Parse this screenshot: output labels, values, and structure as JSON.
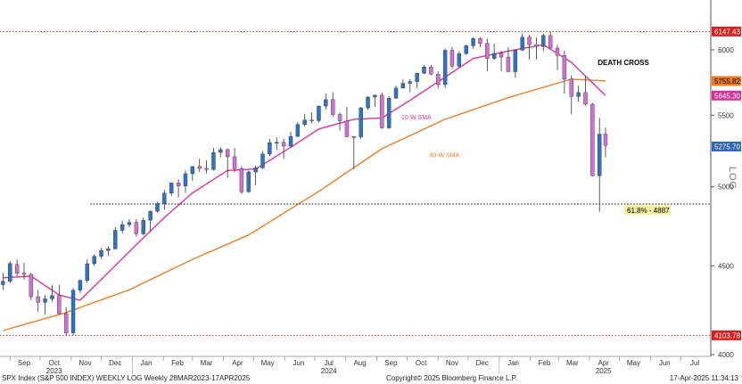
{
  "chart_data": {
    "type": "candlestick",
    "scale": "log",
    "ylim": [
      4000,
      6350
    ],
    "yticks": [
      4000,
      4500,
      5000,
      5500,
      6000
    ],
    "y_axis_label": "LOG",
    "candles": [
      {
        "date": "2023-08-25",
        "o": 4390,
        "h": 4460,
        "l": 4360,
        "c": 4410
      },
      {
        "date": "2023-09-01",
        "o": 4410,
        "h": 4530,
        "l": 4400,
        "c": 4515
      },
      {
        "date": "2023-09-08",
        "o": 4510,
        "h": 4540,
        "l": 4440,
        "c": 4457
      },
      {
        "date": "2023-09-15",
        "o": 4457,
        "h": 4520,
        "l": 4420,
        "c": 4450
      },
      {
        "date": "2023-09-22",
        "o": 4450,
        "h": 4460,
        "l": 4300,
        "c": 4320
      },
      {
        "date": "2023-09-29",
        "o": 4320,
        "h": 4360,
        "l": 4235,
        "c": 4288
      },
      {
        "date": "2023-10-06",
        "o": 4288,
        "h": 4330,
        "l": 4220,
        "c": 4308
      },
      {
        "date": "2023-10-13",
        "o": 4308,
        "h": 4390,
        "l": 4290,
        "c": 4327
      },
      {
        "date": "2023-10-20",
        "o": 4327,
        "h": 4390,
        "l": 4220,
        "c": 4224
      },
      {
        "date": "2023-10-27",
        "o": 4224,
        "h": 4260,
        "l": 4104,
        "c": 4117
      },
      {
        "date": "2023-11-03",
        "o": 4117,
        "h": 4370,
        "l": 4105,
        "c": 4358
      },
      {
        "date": "2023-11-10",
        "o": 4358,
        "h": 4420,
        "l": 4340,
        "c": 4415
      },
      {
        "date": "2023-11-17",
        "o": 4415,
        "h": 4540,
        "l": 4400,
        "c": 4514
      },
      {
        "date": "2023-11-24",
        "o": 4514,
        "h": 4570,
        "l": 4500,
        "c": 4559
      },
      {
        "date": "2023-12-01",
        "o": 4559,
        "h": 4610,
        "l": 4540,
        "c": 4594
      },
      {
        "date": "2023-12-08",
        "o": 4594,
        "h": 4620,
        "l": 4560,
        "c": 4604
      },
      {
        "date": "2023-12-15",
        "o": 4604,
        "h": 4740,
        "l": 4600,
        "c": 4719
      },
      {
        "date": "2023-12-22",
        "o": 4719,
        "h": 4780,
        "l": 4700,
        "c": 4755
      },
      {
        "date": "2023-12-29",
        "o": 4755,
        "h": 4790,
        "l": 4740,
        "c": 4769
      },
      {
        "date": "2024-01-05",
        "o": 4769,
        "h": 4790,
        "l": 4680,
        "c": 4697
      },
      {
        "date": "2024-01-12",
        "o": 4697,
        "h": 4800,
        "l": 4690,
        "c": 4783
      },
      {
        "date": "2024-01-19",
        "o": 4783,
        "h": 4845,
        "l": 4710,
        "c": 4840
      },
      {
        "date": "2024-01-26",
        "o": 4840,
        "h": 4900,
        "l": 4830,
        "c": 4891
      },
      {
        "date": "2024-02-02",
        "o": 4891,
        "h": 4980,
        "l": 4850,
        "c": 4958
      },
      {
        "date": "2024-02-09",
        "o": 4958,
        "h": 5030,
        "l": 4940,
        "c": 5026
      },
      {
        "date": "2024-02-16",
        "o": 5026,
        "h": 5050,
        "l": 4930,
        "c": 5005
      },
      {
        "date": "2024-02-23",
        "o": 5005,
        "h": 5110,
        "l": 4960,
        "c": 5088
      },
      {
        "date": "2024-03-01",
        "o": 5088,
        "h": 5140,
        "l": 5040,
        "c": 5137
      },
      {
        "date": "2024-03-08",
        "o": 5137,
        "h": 5190,
        "l": 5100,
        "c": 5124
      },
      {
        "date": "2024-03-15",
        "o": 5124,
        "h": 5180,
        "l": 5090,
        "c": 5117
      },
      {
        "date": "2024-03-22",
        "o": 5117,
        "h": 5265,
        "l": 5110,
        "c": 5234
      },
      {
        "date": "2024-03-29",
        "o": 5234,
        "h": 5270,
        "l": 5200,
        "c": 5254
      },
      {
        "date": "2024-04-05",
        "o": 5254,
        "h": 5260,
        "l": 5060,
        "c": 5204
      },
      {
        "date": "2024-04-12",
        "o": 5204,
        "h": 5265,
        "l": 5100,
        "c": 5123
      },
      {
        "date": "2024-04-19",
        "o": 5123,
        "h": 5140,
        "l": 4953,
        "c": 4967
      },
      {
        "date": "2024-04-26",
        "o": 4967,
        "h": 5110,
        "l": 4960,
        "c": 5100
      },
      {
        "date": "2024-05-03",
        "o": 5100,
        "h": 5140,
        "l": 5010,
        "c": 5128
      },
      {
        "date": "2024-05-10",
        "o": 5128,
        "h": 5240,
        "l": 5120,
        "c": 5223
      },
      {
        "date": "2024-05-17",
        "o": 5223,
        "h": 5330,
        "l": 5210,
        "c": 5303
      },
      {
        "date": "2024-05-24",
        "o": 5303,
        "h": 5340,
        "l": 5250,
        "c": 5305
      },
      {
        "date": "2024-05-31",
        "o": 5305,
        "h": 5330,
        "l": 5190,
        "c": 5278
      },
      {
        "date": "2024-06-07",
        "o": 5278,
        "h": 5380,
        "l": 5270,
        "c": 5347
      },
      {
        "date": "2024-06-14",
        "o": 5347,
        "h": 5450,
        "l": 5340,
        "c": 5432
      },
      {
        "date": "2024-06-21",
        "o": 5432,
        "h": 5510,
        "l": 5420,
        "c": 5464
      },
      {
        "date": "2024-06-28",
        "o": 5464,
        "h": 5520,
        "l": 5440,
        "c": 5460
      },
      {
        "date": "2024-07-05",
        "o": 5460,
        "h": 5570,
        "l": 5450,
        "c": 5567
      },
      {
        "date": "2024-07-12",
        "o": 5567,
        "h": 5660,
        "l": 5540,
        "c": 5615
      },
      {
        "date": "2024-07-19",
        "o": 5615,
        "h": 5670,
        "l": 5490,
        "c": 5505
      },
      {
        "date": "2024-07-26",
        "o": 5505,
        "h": 5520,
        "l": 5390,
        "c": 5459
      },
      {
        "date": "2024-08-02",
        "o": 5459,
        "h": 5560,
        "l": 5340,
        "c": 5346
      },
      {
        "date": "2024-08-09",
        "o": 5346,
        "h": 5350,
        "l": 5119,
        "c": 5344
      },
      {
        "date": "2024-08-16",
        "o": 5344,
        "h": 5560,
        "l": 5330,
        "c": 5554
      },
      {
        "date": "2024-08-23",
        "o": 5554,
        "h": 5640,
        "l": 5540,
        "c": 5634
      },
      {
        "date": "2024-08-30",
        "o": 5634,
        "h": 5650,
        "l": 5560,
        "c": 5648
      },
      {
        "date": "2024-09-06",
        "o": 5648,
        "h": 5670,
        "l": 5400,
        "c": 5408
      },
      {
        "date": "2024-09-13",
        "o": 5408,
        "h": 5640,
        "l": 5400,
        "c": 5626
      },
      {
        "date": "2024-09-20",
        "o": 5626,
        "h": 5720,
        "l": 5620,
        "c": 5702
      },
      {
        "date": "2024-09-27",
        "o": 5702,
        "h": 5770,
        "l": 5700,
        "c": 5738
      },
      {
        "date": "2024-10-04",
        "o": 5738,
        "h": 5770,
        "l": 5670,
        "c": 5751
      },
      {
        "date": "2024-10-11",
        "o": 5751,
        "h": 5820,
        "l": 5700,
        "c": 5815
      },
      {
        "date": "2024-10-18",
        "o": 5815,
        "h": 5880,
        "l": 5810,
        "c": 5864
      },
      {
        "date": "2024-10-25",
        "o": 5864,
        "h": 5880,
        "l": 5800,
        "c": 5808
      },
      {
        "date": "2024-11-01",
        "o": 5808,
        "h": 5830,
        "l": 5700,
        "c": 5729
      },
      {
        "date": "2024-11-08",
        "o": 5729,
        "h": 6010,
        "l": 5700,
        "c": 5995
      },
      {
        "date": "2024-11-15",
        "o": 5995,
        "h": 6020,
        "l": 5850,
        "c": 5871
      },
      {
        "date": "2024-11-22",
        "o": 5871,
        "h": 5990,
        "l": 5860,
        "c": 5969
      },
      {
        "date": "2024-11-29",
        "o": 5969,
        "h": 6040,
        "l": 5960,
        "c": 6032
      },
      {
        "date": "2024-12-06",
        "o": 6032,
        "h": 6100,
        "l": 6010,
        "c": 6090
      },
      {
        "date": "2024-12-13",
        "o": 6090,
        "h": 6100,
        "l": 6020,
        "c": 6051
      },
      {
        "date": "2024-12-20",
        "o": 6051,
        "h": 6090,
        "l": 5830,
        "c": 5931
      },
      {
        "date": "2024-12-27",
        "o": 5931,
        "h": 6050,
        "l": 5920,
        "c": 5971
      },
      {
        "date": "2025-01-03",
        "o": 5971,
        "h": 5990,
        "l": 5830,
        "c": 5942
      },
      {
        "date": "2025-01-10",
        "o": 5942,
        "h": 6020,
        "l": 5830,
        "c": 5827
      },
      {
        "date": "2025-01-17",
        "o": 5827,
        "h": 6000,
        "l": 5780,
        "c": 5997
      },
      {
        "date": "2025-01-24",
        "o": 5997,
        "h": 6130,
        "l": 5990,
        "c": 6101
      },
      {
        "date": "2025-01-31",
        "o": 6101,
        "h": 6120,
        "l": 5920,
        "c": 6041
      },
      {
        "date": "2025-02-07",
        "o": 6041,
        "h": 6100,
        "l": 5920,
        "c": 6026
      },
      {
        "date": "2025-02-14",
        "o": 6026,
        "h": 6130,
        "l": 5990,
        "c": 6115
      },
      {
        "date": "2025-02-21",
        "o": 6115,
        "h": 6147,
        "l": 6010,
        "c": 6013
      },
      {
        "date": "2025-02-28",
        "o": 6013,
        "h": 6040,
        "l": 5840,
        "c": 5955
      },
      {
        "date": "2025-03-07",
        "o": 5955,
        "h": 5990,
        "l": 5660,
        "c": 5770
      },
      {
        "date": "2025-03-14",
        "o": 5770,
        "h": 5800,
        "l": 5505,
        "c": 5639
      },
      {
        "date": "2025-03-21",
        "o": 5639,
        "h": 5720,
        "l": 5600,
        "c": 5668
      },
      {
        "date": "2025-03-28",
        "o": 5668,
        "h": 5790,
        "l": 5570,
        "c": 5581
      },
      {
        "date": "2025-04-04",
        "o": 5581,
        "h": 5590,
        "l": 5070,
        "c": 5074
      },
      {
        "date": "2025-04-11",
        "o": 5074,
        "h": 5480,
        "l": 4836,
        "c": 5363
      },
      {
        "date": "2025-04-17",
        "o": 5363,
        "h": 5410,
        "l": 5200,
        "c": 5283
      }
    ],
    "sma10": [
      {
        "date": "2023-08-25",
        "v": 4430
      },
      {
        "date": "2023-09-22",
        "v": 4440
      },
      {
        "date": "2023-10-20",
        "v": 4330
      },
      {
        "date": "2023-11-10",
        "v": 4300
      },
      {
        "date": "2023-12-01",
        "v": 4420
      },
      {
        "date": "2024-01-05",
        "v": 4630
      },
      {
        "date": "2024-02-02",
        "v": 4800
      },
      {
        "date": "2024-03-01",
        "v": 4960
      },
      {
        "date": "2024-04-05",
        "v": 5110
      },
      {
        "date": "2024-05-03",
        "v": 5120
      },
      {
        "date": "2024-06-07",
        "v": 5270
      },
      {
        "date": "2024-07-05",
        "v": 5400
      },
      {
        "date": "2024-08-09",
        "v": 5470
      },
      {
        "date": "2024-09-06",
        "v": 5480
      },
      {
        "date": "2024-10-04",
        "v": 5610
      },
      {
        "date": "2024-11-01",
        "v": 5750
      },
      {
        "date": "2024-12-06",
        "v": 5930
      },
      {
        "date": "2025-01-10",
        "v": 5990
      },
      {
        "date": "2025-02-14",
        "v": 6040
      },
      {
        "date": "2025-03-14",
        "v": 5900
      },
      {
        "date": "2025-04-17",
        "v": 5645.3
      }
    ],
    "sma40": [
      {
        "date": "2023-08-25",
        "v": 4130
      },
      {
        "date": "2023-10-27",
        "v": 4230
      },
      {
        "date": "2023-12-29",
        "v": 4360
      },
      {
        "date": "2024-03-01",
        "v": 4540
      },
      {
        "date": "2024-04-26",
        "v": 4690
      },
      {
        "date": "2024-07-05",
        "v": 4970
      },
      {
        "date": "2024-09-06",
        "v": 5260
      },
      {
        "date": "2024-11-08",
        "v": 5470
      },
      {
        "date": "2025-01-10",
        "v": 5630
      },
      {
        "date": "2025-03-14",
        "v": 5770
      },
      {
        "date": "2025-04-17",
        "v": 5755.82
      }
    ],
    "hlines": [
      {
        "value": 6147.43,
        "label": "6147.43",
        "style": "dotted",
        "color": "#d42020"
      },
      {
        "value": 4103.78,
        "label": "4103.78",
        "style": "dotted",
        "color": "#d42020"
      },
      {
        "value": 4887,
        "label": "61.8% - 4887",
        "style": "dotted",
        "color": "#000000"
      }
    ],
    "price_tags": [
      {
        "value": 6147.43,
        "label": "6147.43",
        "bg": "#d42020",
        "fg": "#ffffff"
      },
      {
        "value": 5755.82,
        "label": "5755.82",
        "bg": "#f07c20",
        "fg": "#000000"
      },
      {
        "value": 5645.3,
        "label": "5645.30",
        "bg": "#d4329a",
        "fg": "#ffffff"
      },
      {
        "value": 5275.7,
        "label": "5275.70",
        "bg": "#2c66b8",
        "fg": "#ffffff"
      },
      {
        "value": 4103.78,
        "label": "4103.78",
        "bg": "#d42020",
        "fg": "#ffffff"
      }
    ],
    "annotations": [
      {
        "text": "DEATH CROSS",
        "date": "2025-04-11",
        "value": 5880,
        "color": "#000000",
        "bold": true
      },
      {
        "text": "10-W SMA",
        "date": "2024-09-27",
        "value": 5470,
        "color": "#e0309a",
        "bold": false
      },
      {
        "text": "40-W SMA",
        "date": "2024-10-25",
        "value": 5200,
        "color": "#f07c20",
        "bold": false
      }
    ],
    "x_months": [
      {
        "label": "Sep",
        "date": "2023-09-15"
      },
      {
        "label": "Oct",
        "date": "2023-10-15"
      },
      {
        "label": "Nov",
        "date": "2023-11-15"
      },
      {
        "label": "Dec",
        "date": "2023-12-15"
      },
      {
        "label": "Jan",
        "date": "2024-01-15"
      },
      {
        "label": "Feb",
        "date": "2024-02-15"
      },
      {
        "label": "Mar",
        "date": "2024-03-15"
      },
      {
        "label": "Apr",
        "date": "2024-04-15"
      },
      {
        "label": "May",
        "date": "2024-05-15"
      },
      {
        "label": "Jun",
        "date": "2024-06-15"
      },
      {
        "label": "Jul",
        "date": "2024-07-15"
      },
      {
        "label": "Aug",
        "date": "2024-08-15"
      },
      {
        "label": "Sep",
        "date": "2024-09-15"
      },
      {
        "label": "Oct",
        "date": "2024-10-15"
      },
      {
        "label": "Nov",
        "date": "2024-11-15"
      },
      {
        "label": "Dec",
        "date": "2024-12-15"
      },
      {
        "label": "Jan",
        "date": "2025-01-15"
      },
      {
        "label": "Feb",
        "date": "2025-02-15"
      },
      {
        "label": "Mar",
        "date": "2025-03-15"
      },
      {
        "label": "Apr",
        "date": "2025-04-15"
      },
      {
        "label": "May",
        "date": "2025-05-15"
      },
      {
        "label": "Jun",
        "date": "2025-06-15"
      },
      {
        "label": "Jul",
        "date": "2025-07-15"
      }
    ],
    "x_years": [
      {
        "label": "2023",
        "date": "2023-10-15"
      },
      {
        "label": "2024",
        "date": "2024-07-15"
      },
      {
        "label": "2025",
        "date": "2025-04-15"
      }
    ],
    "xlim": [
      "2023-08-22",
      "2025-07-31"
    ],
    "colors": {
      "up": "#2e74c4",
      "down": "#d36fd6",
      "sma10": "#e0309a",
      "sma40": "#f07c20"
    }
  },
  "footer": {
    "left": "SPX Index (S&P 500 INDEX) WEEKLY LOG  Weekly 28MAR2023-17APR2025",
    "center": "Copyright© 2025 Bloomberg Finance L.P.",
    "right": "17-Apr-2025 11:34:13"
  }
}
